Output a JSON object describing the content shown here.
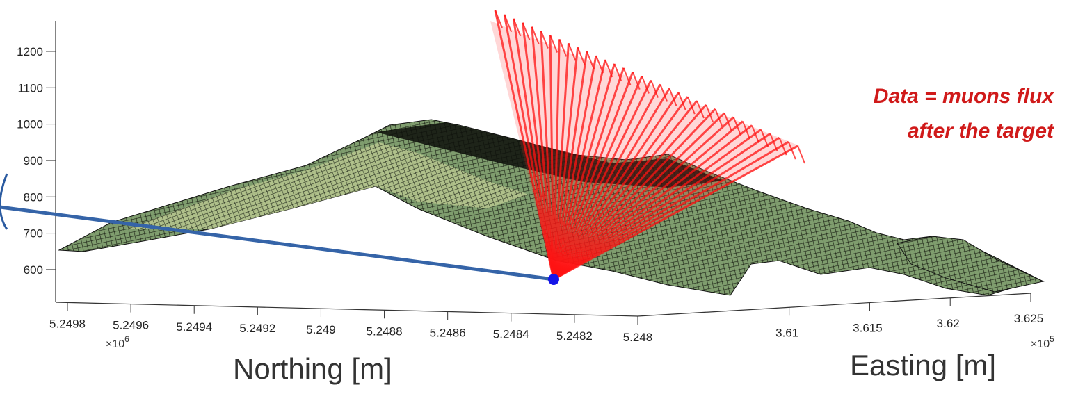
{
  "chart_data": {
    "type": "surface3d",
    "annotation": [
      "Data = muons flux",
      "after the target"
    ],
    "zlim": [
      510,
      1284
    ],
    "zticks": [
      600,
      700,
      800,
      900,
      1000,
      1100,
      1200
    ],
    "northing_label": "Northing [m]",
    "northing_multiplier": {
      "base": "×10",
      "exponent": "6"
    },
    "northing_lim": [
      5249800,
      5248000
    ],
    "northing_ticks": [
      {
        "value": 5249800,
        "label": "5.2498"
      },
      {
        "value": 5249600,
        "label": "5.2496"
      },
      {
        "value": 5249400,
        "label": "5.2494"
      },
      {
        "value": 5249200,
        "label": "5.2492"
      },
      {
        "value": 5249000,
        "label": "5.249"
      },
      {
        "value": 5248800,
        "label": "5.2488"
      },
      {
        "value": 5248600,
        "label": "5.2486"
      },
      {
        "value": 5248400,
        "label": "5.2484"
      },
      {
        "value": 5248200,
        "label": "5.2482"
      },
      {
        "value": 5248000,
        "label": "5.248"
      }
    ],
    "easting_label": "Easting [m]",
    "easting_multiplier": {
      "base": "×10",
      "exponent": "5"
    },
    "easting_lim": [
      360060,
      362500
    ],
    "easting_ticks": [
      {
        "value": 361000,
        "label": "3.61"
      },
      {
        "value": 361500,
        "label": "3.615"
      },
      {
        "value": 362000,
        "label": "3.62"
      },
      {
        "value": 362500,
        "label": "3.625"
      }
    ]
  }
}
